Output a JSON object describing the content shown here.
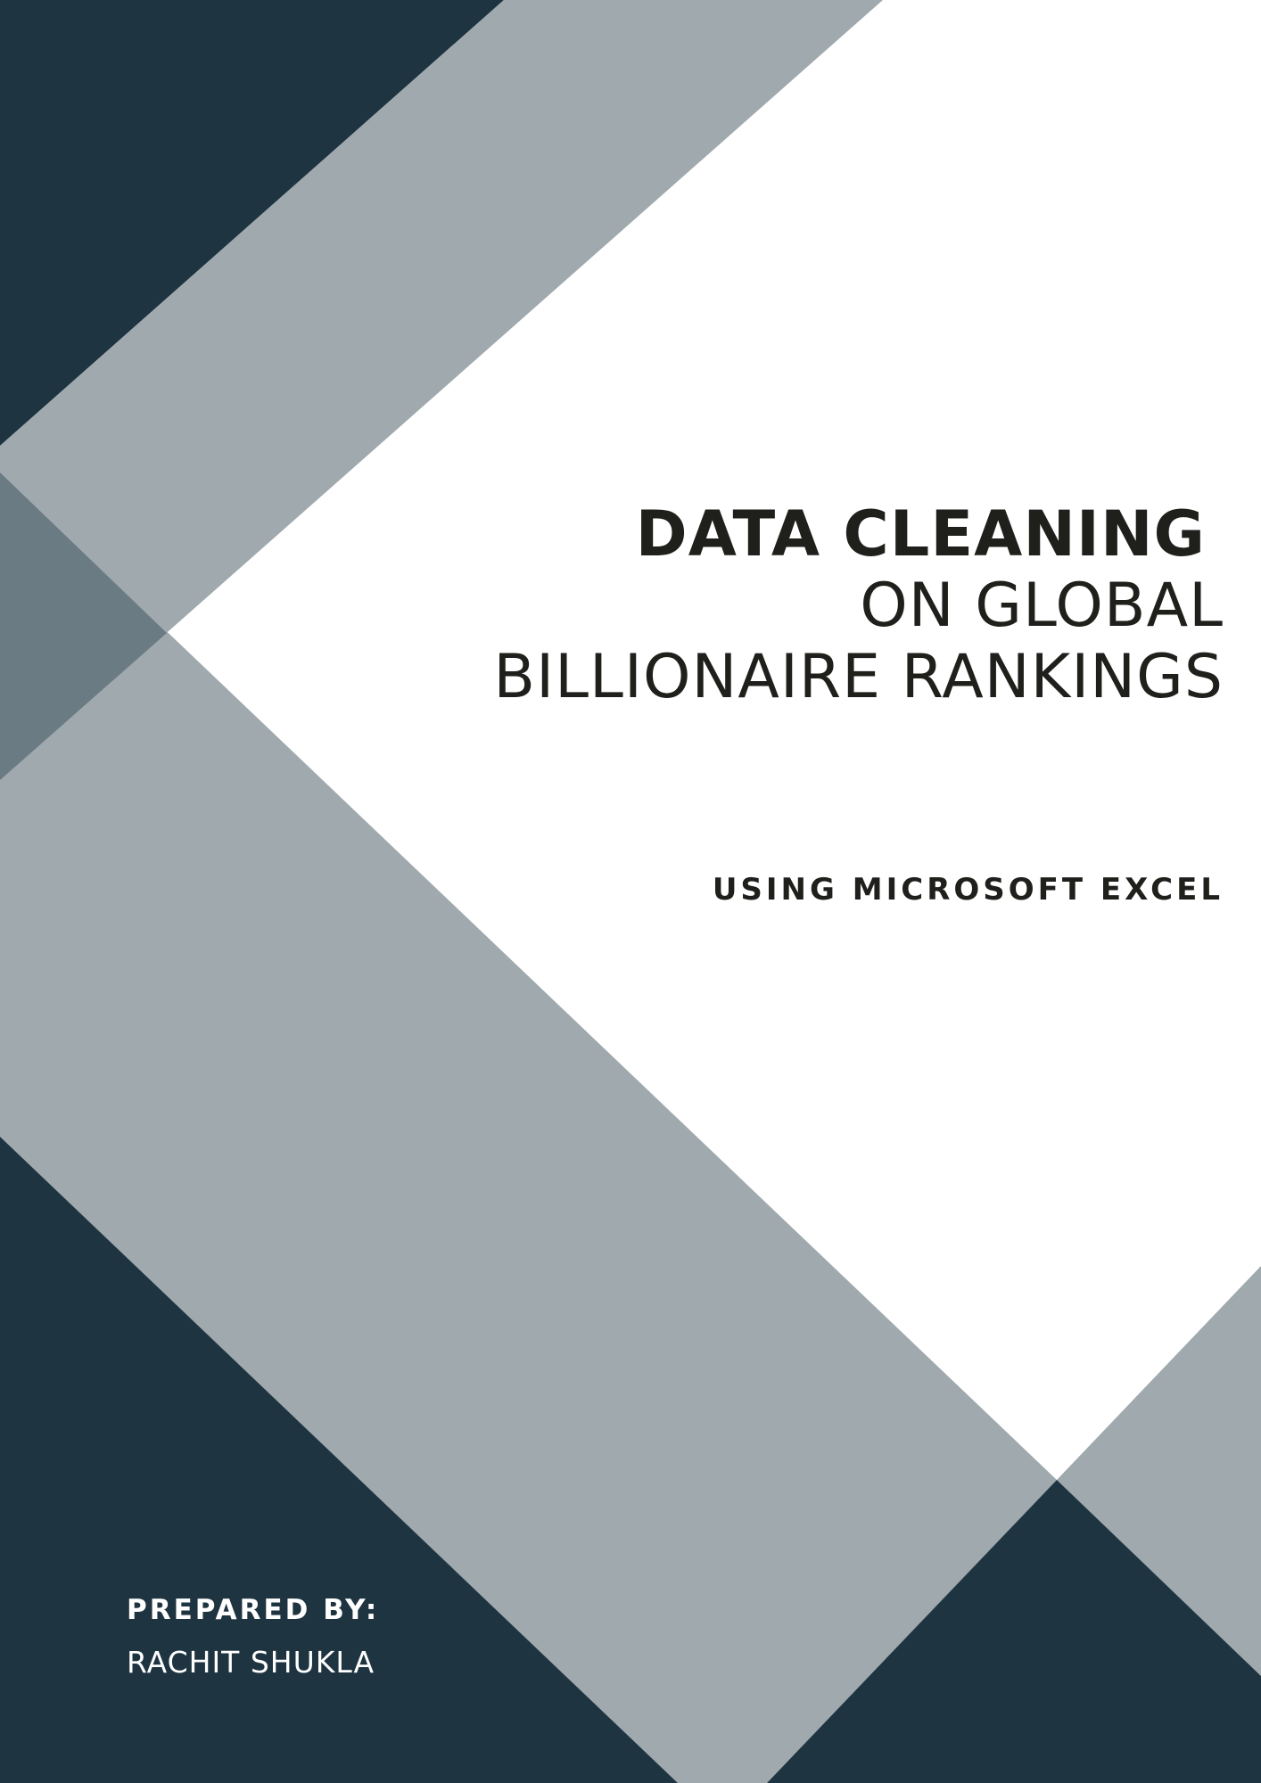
{
  "title": {
    "line1": "DATA CLEANING",
    "line2": "ON GLOBAL",
    "line3": "BILLIONAIRE RANKINGS"
  },
  "subtitle": "USING MICROSOFT EXCEL",
  "prepared_by": {
    "label": "PREPARED BY:",
    "name": "RACHIT SHUKLA"
  },
  "colors": {
    "dark": "#1e3440",
    "mid_gray": "#9fa9ae",
    "overlap_gray": "#6b7b83",
    "text_dark": "#1f1f1c",
    "text_light": "#ffffff"
  }
}
